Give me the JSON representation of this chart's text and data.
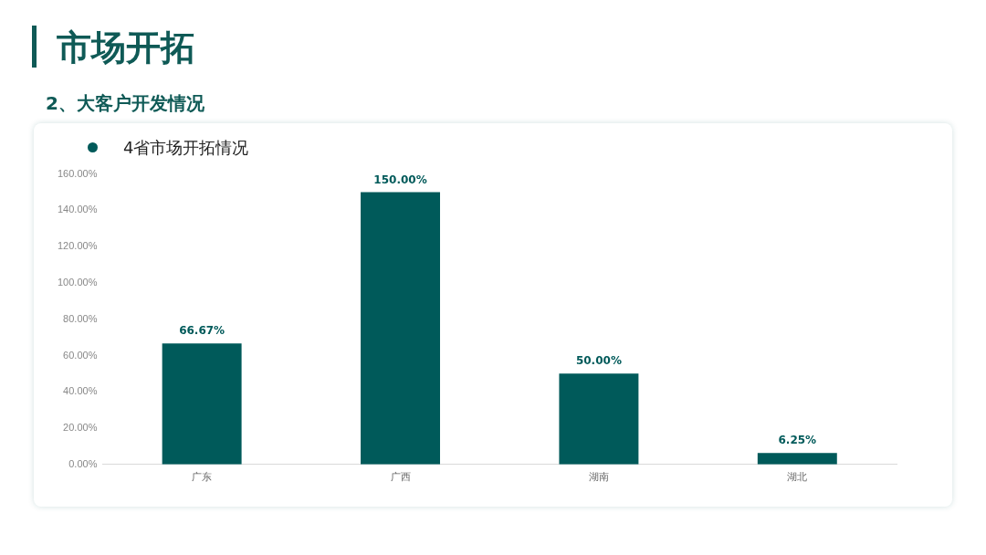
{
  "chart_data": {
    "type": "bar",
    "title": "市场开拓",
    "subtitle": "2、大客户开发情况",
    "legend_title": "4省市场开拓情况",
    "categories": [
      "广东",
      "广西",
      "湖南",
      "湖北"
    ],
    "values": [
      66.67,
      150,
      50,
      6.25
    ],
    "value_labels": [
      "66.67%",
      "150.00%",
      "50.00%",
      "6.25%"
    ],
    "color": "#005a5a",
    "ylim": [
      0,
      160
    ],
    "yticks": [
      {
        "value": 0,
        "label": "0.00%"
      },
      {
        "value": 20,
        "label": "20.00%"
      },
      {
        "value": 40,
        "label": "40.00%"
      },
      {
        "value": 60,
        "label": "60.00%"
      },
      {
        "value": 80,
        "label": "80.00%"
      },
      {
        "value": 100,
        "label": "100.00%"
      },
      {
        "value": 120,
        "label": "120.00%"
      },
      {
        "value": 140,
        "label": "140.00%"
      },
      {
        "value": 160,
        "label": "160.00%"
      }
    ],
    "grid": false
  }
}
